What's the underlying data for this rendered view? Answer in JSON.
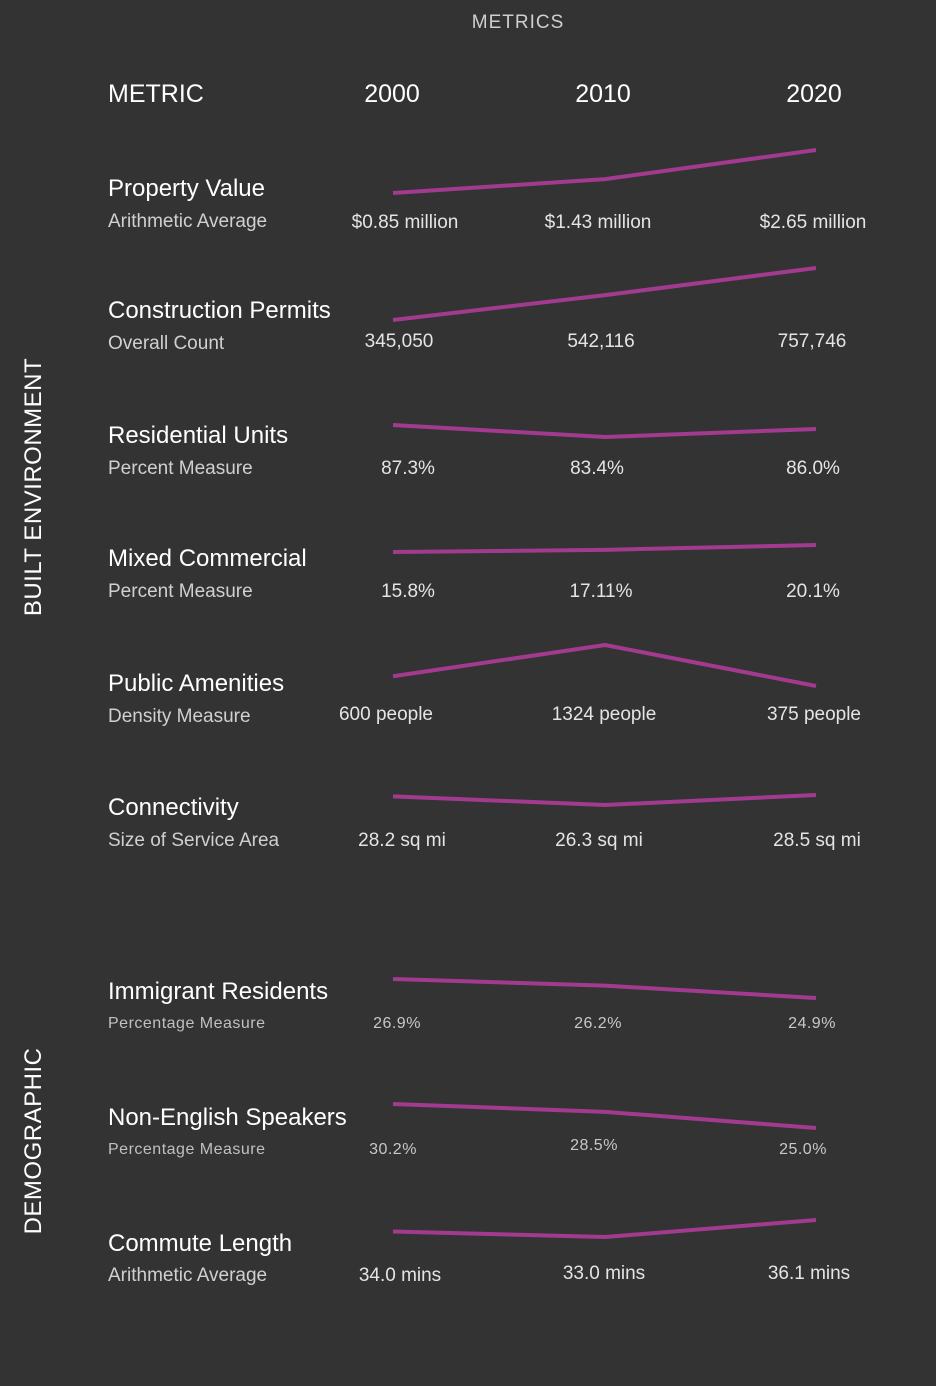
{
  "title": "METRICS",
  "header": {
    "metric": "METRIC",
    "years": [
      "2000",
      "2010",
      "2020"
    ]
  },
  "groups": {
    "built": "BUILT ENVIRONMENT",
    "demographic": "DEMOGRAPHIC"
  },
  "colors": {
    "background": "#333333",
    "line": "#a23a8f"
  },
  "chart_data": {
    "type": "line",
    "x": [
      2000,
      2010,
      2020
    ],
    "line_color": "#a23a8f",
    "rows": [
      {
        "name": "Property Value",
        "sub": "Arithmetic Average",
        "group": "BUILT ENVIRONMENT",
        "labels": [
          "$0.85 million",
          "$1.43 million",
          "$2.65 million"
        ],
        "values": [
          0.85,
          1.43,
          2.65
        ]
      },
      {
        "name": "Construction Permits",
        "sub": "Overall Count",
        "group": "BUILT ENVIRONMENT",
        "labels": [
          "345,050",
          "542,116",
          "757,746"
        ],
        "values": [
          345050,
          542116,
          757746
        ]
      },
      {
        "name": "Residential Units",
        "sub": "Percent Measure",
        "group": "BUILT ENVIRONMENT",
        "labels": [
          "87.3%",
          "83.4%",
          "86.0%"
        ],
        "values": [
          87.3,
          83.4,
          86.0
        ]
      },
      {
        "name": "Mixed Commercial",
        "sub": "Percent Measure",
        "group": "BUILT ENVIRONMENT",
        "labels": [
          "15.8%",
          "17.11%",
          "20.1%"
        ],
        "values": [
          15.8,
          17.11,
          20.1
        ]
      },
      {
        "name": "Public Amenities",
        "sub": "Density Measure",
        "group": "BUILT ENVIRONMENT",
        "labels": [
          "600 people",
          "1324 people",
          "375 people"
        ],
        "values": [
          600,
          1324,
          375
        ]
      },
      {
        "name": "Connectivity",
        "sub": "Size of Service Area",
        "group": "BUILT ENVIRONMENT",
        "labels": [
          "28.2 sq mi",
          "26.3 sq mi",
          "28.5 sq mi"
        ],
        "values": [
          28.2,
          26.3,
          28.5
        ]
      },
      {
        "name": "Immigrant Residents",
        "sub": "Percentage Measure",
        "group": "DEMOGRAPHIC",
        "labels": [
          "26.9%",
          "26.2%",
          "24.9%"
        ],
        "values": [
          26.9,
          26.2,
          24.9
        ]
      },
      {
        "name": "Non-English Speakers",
        "sub": "Percentage Measure",
        "group": "DEMOGRAPHIC",
        "labels": [
          "30.2%",
          "28.5%",
          "25.0%"
        ],
        "values": [
          30.2,
          28.5,
          25.0
        ]
      },
      {
        "name": "Commute Length",
        "sub": "Arithmetic Average",
        "group": "DEMOGRAPHIC",
        "labels": [
          "34.0 mins",
          "33.0 mins",
          "36.1 mins"
        ],
        "values": [
          34.0,
          33.0,
          36.1
        ]
      }
    ]
  }
}
